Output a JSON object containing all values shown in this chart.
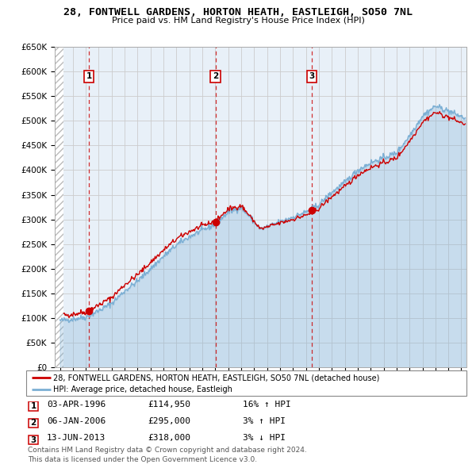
{
  "title": "28, FONTWELL GARDENS, HORTON HEATH, EASTLEIGH, SO50 7NL",
  "subtitle": "Price paid vs. HM Land Registry's House Price Index (HPI)",
  "ylim": [
    0,
    650000
  ],
  "yticks": [
    0,
    50000,
    100000,
    150000,
    200000,
    250000,
    300000,
    350000,
    400000,
    450000,
    500000,
    550000,
    600000,
    650000
  ],
  "ytick_labels": [
    "£0",
    "£50K",
    "£100K",
    "£150K",
    "£200K",
    "£250K",
    "£300K",
    "£350K",
    "£400K",
    "£450K",
    "£500K",
    "£550K",
    "£600K",
    "£650K"
  ],
  "xlim_start": 1993.6,
  "xlim_end": 2025.4,
  "transactions": [
    {
      "num": 1,
      "year": 1996.25,
      "price": 114950,
      "label": "1",
      "date": "03-APR-1996",
      "price_str": "£114,950",
      "hpi_str": "16% ↑ HPI"
    },
    {
      "num": 2,
      "year": 2006.02,
      "price": 295000,
      "label": "2",
      "date": "06-JAN-2006",
      "price_str": "£295,000",
      "hpi_str": "3% ↑ HPI"
    },
    {
      "num": 3,
      "year": 2013.44,
      "price": 318000,
      "label": "3",
      "date": "13-JUN-2013",
      "price_str": "£318,000",
      "hpi_str": "3% ↓ HPI"
    }
  ],
  "legend_line1": "28, FONTWELL GARDENS, HORTON HEATH, EASTLEIGH, SO50 7NL (detached house)",
  "legend_line2": "HPI: Average price, detached house, Eastleigh",
  "footer1": "Contains HM Land Registry data © Crown copyright and database right 2024.",
  "footer2": "This data is licensed under the Open Government Licence v3.0.",
  "red_color": "#cc0000",
  "blue_color": "#7bafd4",
  "hatch_color": "#cccccc",
  "grid_color": "#cccccc",
  "bg_color": "#e8f0f8"
}
